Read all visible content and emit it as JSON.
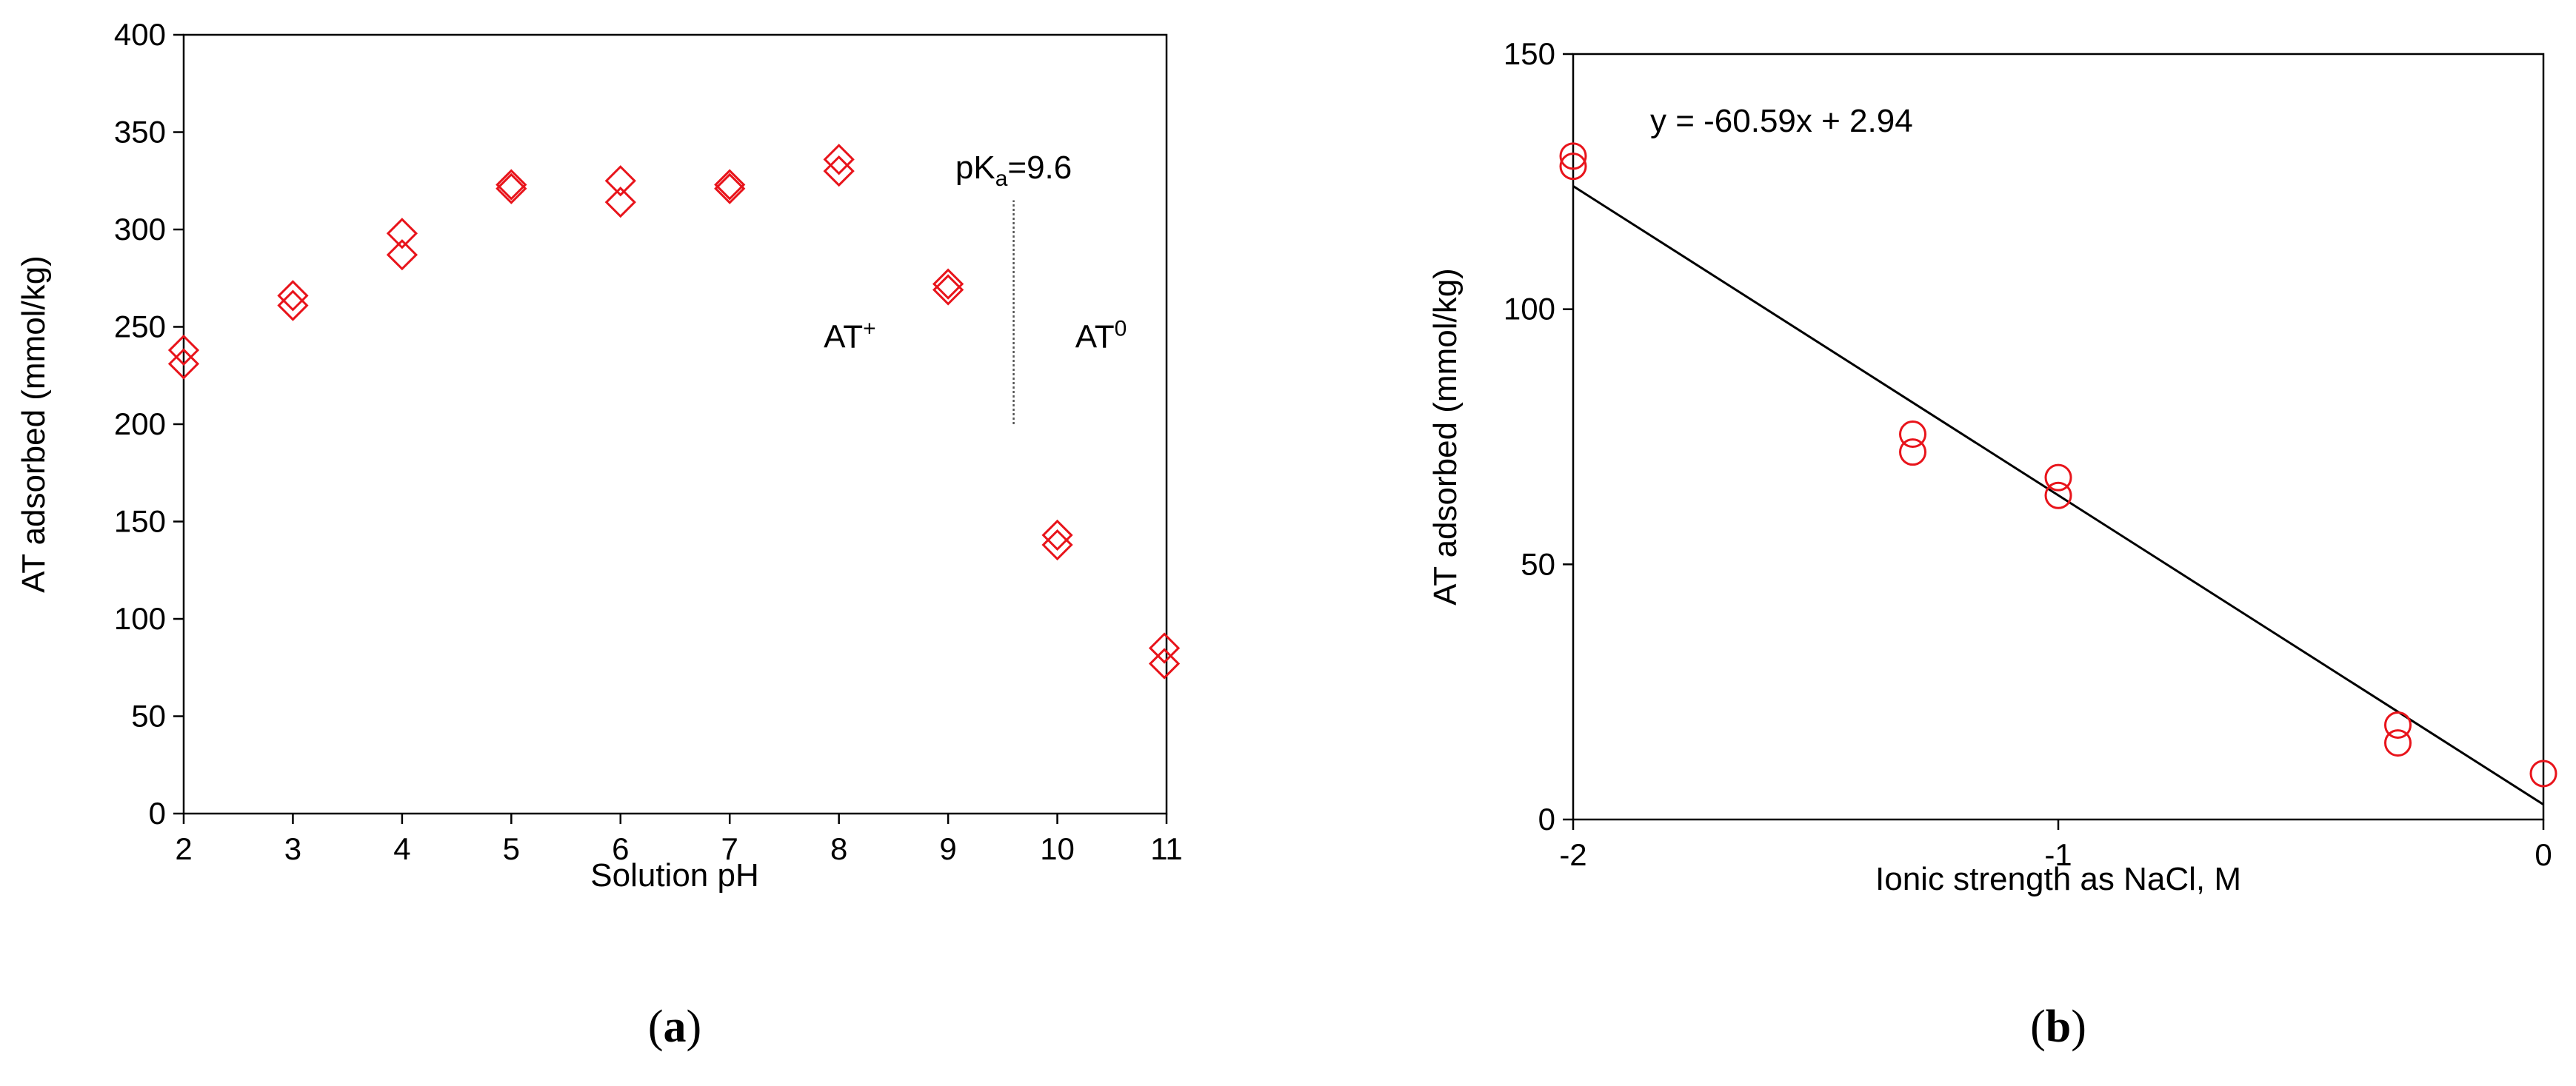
{
  "chart_data": [
    {
      "type": "scatter",
      "panel_label": "a",
      "xlabel": "Solution pH",
      "ylabel": "AT adsorbed (mmol/kg)",
      "xlim": [
        2,
        11
      ],
      "ylim": [
        0,
        400
      ],
      "x_ticks": [
        2,
        3,
        4,
        5,
        6,
        7,
        8,
        9,
        10,
        11
      ],
      "y_ticks": [
        0,
        50,
        100,
        150,
        200,
        250,
        300,
        350,
        400
      ],
      "marker": "diamond-open",
      "marker_color": "#e8141b",
      "points": [
        {
          "x": 2,
          "y": 238
        },
        {
          "x": 2,
          "y": 231
        },
        {
          "x": 3,
          "y": 266
        },
        {
          "x": 3,
          "y": 261
        },
        {
          "x": 4,
          "y": 298
        },
        {
          "x": 4,
          "y": 287
        },
        {
          "x": 5,
          "y": 323
        },
        {
          "x": 5,
          "y": 321
        },
        {
          "x": 6,
          "y": 325
        },
        {
          "x": 6,
          "y": 314
        },
        {
          "x": 7,
          "y": 323
        },
        {
          "x": 7,
          "y": 321
        },
        {
          "x": 8,
          "y": 336
        },
        {
          "x": 8,
          "y": 330
        },
        {
          "x": 9,
          "y": 272
        },
        {
          "x": 9,
          "y": 269
        },
        {
          "x": 10,
          "y": 143
        },
        {
          "x": 10,
          "y": 138
        },
        {
          "x": 10.98,
          "y": 85
        },
        {
          "x": 10.98,
          "y": 77
        }
      ],
      "annotations": {
        "pka_base": "pK",
        "pka_sub": "a",
        "pka_value": "=9.6",
        "pka_x": 9.6,
        "pka_line_y": [
          200,
          315
        ],
        "left_species_base": "AT",
        "left_species_sup": "+",
        "right_species_base": "AT",
        "right_species_sup": "0"
      }
    },
    {
      "type": "scatter",
      "panel_label": "b",
      "xlabel": "Ionic strength as NaCl, M",
      "ylabel": "AT adsorbed (mmol/kg)",
      "xlim": [
        -2,
        0
      ],
      "ylim": [
        0,
        150
      ],
      "x_ticks": [
        -2,
        -1,
        0
      ],
      "y_ticks": [
        0,
        50,
        100,
        150
      ],
      "marker": "circle-open",
      "marker_color": "#e8141b",
      "points": [
        {
          "x": -2,
          "y": 130
        },
        {
          "x": -2,
          "y": 128
        },
        {
          "x": -1.3,
          "y": 75.5
        },
        {
          "x": -1.3,
          "y": 72
        },
        {
          "x": -1,
          "y": 67
        },
        {
          "x": -1,
          "y": 63.5
        },
        {
          "x": -0.3,
          "y": 18.5
        },
        {
          "x": -0.3,
          "y": 15
        },
        {
          "x": 0,
          "y": 9
        }
      ],
      "trendline": {
        "slope": -60.59,
        "intercept": 2.94,
        "x_range": [
          -2,
          0
        ]
      },
      "equation": "y = -60.59x + 2.94"
    }
  ]
}
